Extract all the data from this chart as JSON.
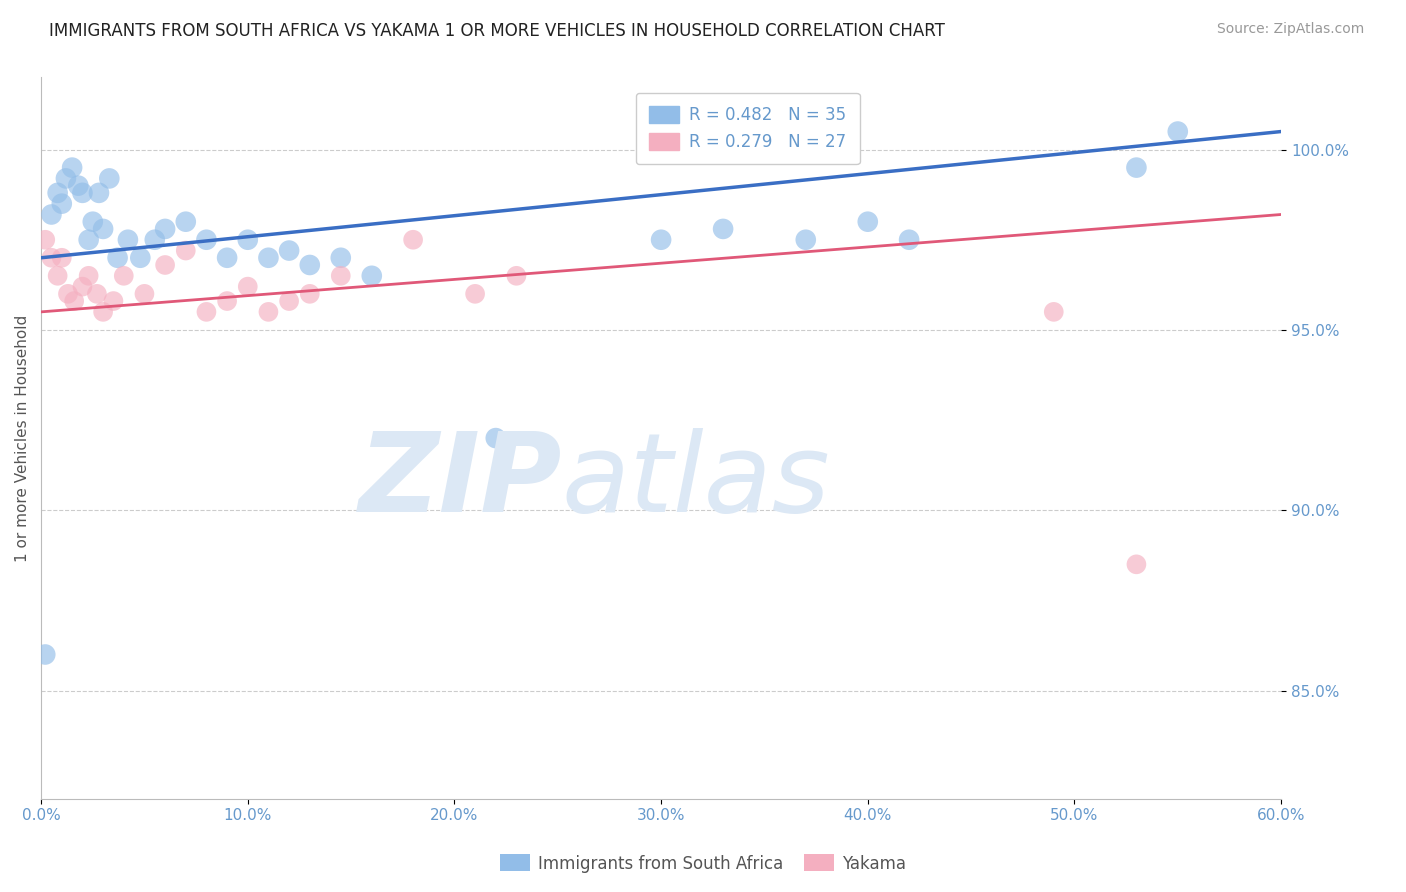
{
  "title": "IMMIGRANTS FROM SOUTH AFRICA VS YAKAMA 1 OR MORE VEHICLES IN HOUSEHOLD CORRELATION CHART",
  "source_text": "Source: ZipAtlas.com",
  "ylabel": "1 or more Vehicles in Household",
  "xlim": [
    0.0,
    60.0
  ],
  "ylim": [
    82.0,
    102.0
  ],
  "yticks": [
    85.0,
    90.0,
    95.0,
    100.0
  ],
  "xticks": [
    0.0,
    10.0,
    20.0,
    30.0,
    40.0,
    50.0,
    60.0
  ],
  "xtick_labels": [
    "0.0%",
    "10.0%",
    "20.0%",
    "30.0%",
    "40.0%",
    "50.0%",
    "60.0%"
  ],
  "ytick_labels": [
    "85.0%",
    "90.0%",
    "95.0%",
    "100.0%"
  ],
  "blue_color": "#92bde8",
  "pink_color": "#f4afc0",
  "blue_line_color": "#3a6ec4",
  "pink_line_color": "#e05878",
  "legend_blue_R": "R = 0.482",
  "legend_blue_N": "N = 35",
  "legend_pink_R": "R = 0.279",
  "legend_pink_N": "N = 27",
  "axis_label_color": "#6699cc",
  "grid_color": "#cccccc",
  "watermark_color": "#dce8f5",
  "blue_scatter_x": [
    0.2,
    0.5,
    0.8,
    1.0,
    1.2,
    1.5,
    1.8,
    2.0,
    2.3,
    2.5,
    2.8,
    3.0,
    3.3,
    3.7,
    4.2,
    4.8,
    5.5,
    6.0,
    7.0,
    8.0,
    9.0,
    10.0,
    11.0,
    12.0,
    13.0,
    14.5,
    16.0,
    22.0,
    30.0,
    33.0,
    37.0,
    40.0,
    42.0,
    53.0,
    55.0
  ],
  "blue_scatter_y": [
    86.0,
    98.2,
    98.8,
    98.5,
    99.2,
    99.5,
    99.0,
    98.8,
    97.5,
    98.0,
    98.8,
    97.8,
    99.2,
    97.0,
    97.5,
    97.0,
    97.5,
    97.8,
    98.0,
    97.5,
    97.0,
    97.5,
    97.0,
    97.2,
    96.8,
    97.0,
    96.5,
    92.0,
    97.5,
    97.8,
    97.5,
    98.0,
    97.5,
    99.5,
    100.5
  ],
  "pink_scatter_x": [
    0.2,
    0.5,
    0.8,
    1.0,
    1.3,
    1.6,
    2.0,
    2.3,
    2.7,
    3.0,
    3.5,
    4.0,
    5.0,
    6.0,
    7.0,
    8.0,
    9.0,
    10.0,
    11.0,
    12.0,
    13.0,
    14.5,
    18.0,
    21.0,
    23.0,
    49.0,
    53.0
  ],
  "pink_scatter_y": [
    97.5,
    97.0,
    96.5,
    97.0,
    96.0,
    95.8,
    96.2,
    96.5,
    96.0,
    95.5,
    95.8,
    96.5,
    96.0,
    96.8,
    97.2,
    95.5,
    95.8,
    96.2,
    95.5,
    95.8,
    96.0,
    96.5,
    97.5,
    96.0,
    96.5,
    95.5,
    88.5
  ],
  "blue_line_x0": 0.0,
  "blue_line_y0": 97.0,
  "blue_line_x1": 60.0,
  "blue_line_y1": 100.5,
  "pink_line_x0": 0.0,
  "pink_line_y0": 95.5,
  "pink_line_x1": 60.0,
  "pink_line_y1": 98.2
}
